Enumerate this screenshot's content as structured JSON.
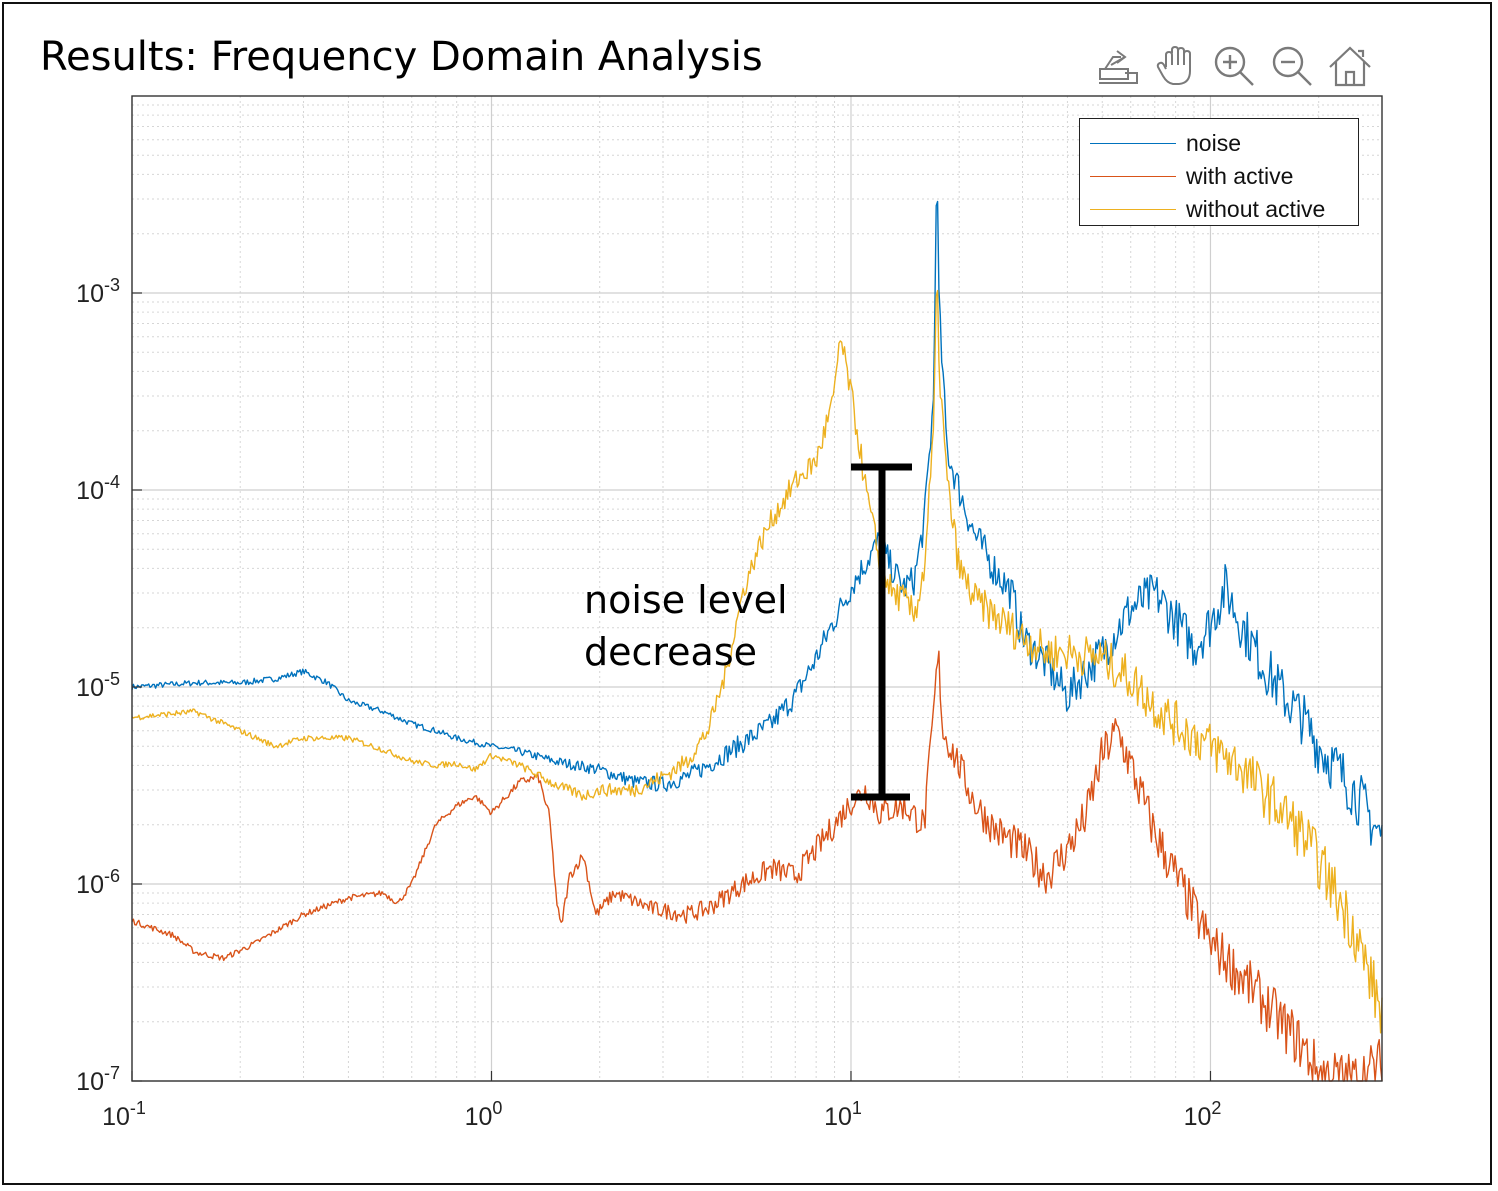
{
  "page": {
    "title": "Results: Frequency Domain Analysis"
  },
  "toolbar": [
    {
      "icon": "export-icon",
      "label": "Export"
    },
    {
      "icon": "pan-hand-icon",
      "label": "Pan"
    },
    {
      "icon": "zoom-in-icon",
      "label": "Zoom in"
    },
    {
      "icon": "zoom-out-icon",
      "label": "Zoom out"
    },
    {
      "icon": "home-icon",
      "label": "Restore view"
    }
  ],
  "annotation": {
    "line1": "noise level",
    "line2": "decrease"
  },
  "chart_data": {
    "type": "line",
    "xscale": "log",
    "yscale": "log",
    "xlim": [
      0.1,
      300
    ],
    "ylim": [
      1e-07,
      0.01
    ],
    "grid": true,
    "legend_position": "top-right",
    "xticks": [
      {
        "base": "10",
        "exp": "-1",
        "value": 0.1
      },
      {
        "base": "10",
        "exp": "0",
        "value": 1
      },
      {
        "base": "10",
        "exp": "1",
        "value": 10
      },
      {
        "base": "10",
        "exp": "2",
        "value": 100
      }
    ],
    "yticks": [
      {
        "base": "10",
        "exp": "-7",
        "value": 1e-07
      },
      {
        "base": "10",
        "exp": "-6",
        "value": 1e-06
      },
      {
        "base": "10",
        "exp": "-5",
        "value": 1e-05
      },
      {
        "base": "10",
        "exp": "-4",
        "value": 0.0001
      },
      {
        "base": "10",
        "exp": "-3",
        "value": 0.001
      }
    ],
    "series": [
      {
        "name": "noise",
        "color": "#0072BD",
        "points": [
          [
            0.1,
            1e-05
          ],
          [
            0.15,
            1.05e-05
          ],
          [
            0.2,
            1.05e-05
          ],
          [
            0.25,
            1.1e-05
          ],
          [
            0.3,
            1.2e-05
          ],
          [
            0.35,
            1.05e-05
          ],
          [
            0.4,
            8.5e-06
          ],
          [
            0.5,
            7.5e-06
          ],
          [
            0.6,
            6.5e-06
          ],
          [
            0.7,
            6e-06
          ],
          [
            0.8,
            5.5e-06
          ],
          [
            1.0,
            5e-06
          ],
          [
            1.2,
            4.7e-06
          ],
          [
            1.5,
            4.2e-06
          ],
          [
            2.0,
            3.8e-06
          ],
          [
            2.5,
            3.3e-06
          ],
          [
            3.0,
            3.2e-06
          ],
          [
            3.5,
            3.5e-06
          ],
          [
            4.0,
            4e-06
          ],
          [
            5.0,
            5.2e-06
          ],
          [
            6.0,
            6.5e-06
          ],
          [
            7.0,
            9e-06
          ],
          [
            8.0,
            1.4e-05
          ],
          [
            9.0,
            2.2e-05
          ],
          [
            10.0,
            3.2e-05
          ],
          [
            11.0,
            4.3e-05
          ],
          [
            12.0,
            5.5e-05
          ],
          [
            13.0,
            4e-05
          ],
          [
            14.0,
            3.2e-05
          ],
          [
            15.0,
            3.5e-05
          ],
          [
            16.0,
            7e-05
          ],
          [
            17.0,
            0.0003
          ],
          [
            17.3,
            0.005
          ],
          [
            17.6,
            0.0008
          ],
          [
            18.5,
            0.00016
          ],
          [
            20.0,
            0.0001
          ],
          [
            22.0,
            6e-05
          ],
          [
            25.0,
            4e-05
          ],
          [
            28.0,
            3e-05
          ],
          [
            30.0,
            1.8e-05
          ],
          [
            35.0,
            1.3e-05
          ],
          [
            40.0,
            9e-06
          ],
          [
            45.0,
            1.2e-05
          ],
          [
            50.0,
            1.5e-05
          ],
          [
            60.0,
            2.5e-05
          ],
          [
            70.0,
            3e-05
          ],
          [
            80.0,
            2.2e-05
          ],
          [
            90.0,
            1.6e-05
          ],
          [
            100.0,
            2.1e-05
          ],
          [
            110.0,
            3.2e-05
          ],
          [
            120.0,
            2.2e-05
          ],
          [
            140.0,
            1.3e-05
          ],
          [
            160.0,
            9e-06
          ],
          [
            180.0,
            7e-06
          ],
          [
            200.0,
            5e-06
          ],
          [
            250.0,
            3e-06
          ],
          [
            300.0,
            1.7e-06
          ]
        ]
      },
      {
        "name": "with active",
        "color": "#D95319",
        "points": [
          [
            0.1,
            6.5e-07
          ],
          [
            0.13,
            5.5e-07
          ],
          [
            0.15,
            4.5e-07
          ],
          [
            0.18,
            4.2e-07
          ],
          [
            0.22,
            5e-07
          ],
          [
            0.3,
            7e-07
          ],
          [
            0.4,
            8.5e-07
          ],
          [
            0.5,
            9e-07
          ],
          [
            0.55,
            8e-07
          ],
          [
            0.6,
            1e-06
          ],
          [
            0.7,
            2e-06
          ],
          [
            0.8,
            2.5e-06
          ],
          [
            0.9,
            2.8e-06
          ],
          [
            1.0,
            2.3e-06
          ],
          [
            1.2,
            3.3e-06
          ],
          [
            1.35,
            3.5e-06
          ],
          [
            1.45,
            2.2e-06
          ],
          [
            1.52,
            8e-07
          ],
          [
            1.56,
            6e-07
          ],
          [
            1.65,
            1.1e-06
          ],
          [
            1.8,
            1.4e-06
          ],
          [
            1.95,
            7e-07
          ],
          [
            2.2,
            9e-07
          ],
          [
            2.8,
            7.5e-07
          ],
          [
            3.5,
            7e-07
          ],
          [
            4.0,
            7.5e-07
          ],
          [
            5.0,
            1e-06
          ],
          [
            6.0,
            1.2e-06
          ],
          [
            7.0,
            1.1e-06
          ],
          [
            8.0,
            1.5e-06
          ],
          [
            9.0,
            2e-06
          ],
          [
            10.0,
            2.6e-06
          ],
          [
            11.0,
            3e-06
          ],
          [
            12.0,
            2.3e-06
          ],
          [
            14.0,
            2.5e-06
          ],
          [
            16.0,
            2e-06
          ],
          [
            17.2,
            1e-05
          ],
          [
            17.5,
            1.5e-05
          ],
          [
            18.0,
            6e-06
          ],
          [
            20.0,
            4e-06
          ],
          [
            22.0,
            2.6e-06
          ],
          [
            25.0,
            1.9e-06
          ],
          [
            30.0,
            1.5e-06
          ],
          [
            35.0,
            1.1e-06
          ],
          [
            40.0,
            1.5e-06
          ],
          [
            45.0,
            2.2e-06
          ],
          [
            50.0,
            4.5e-06
          ],
          [
            55.0,
            6e-06
          ],
          [
            60.0,
            4e-06
          ],
          [
            70.0,
            1.8e-06
          ],
          [
            80.0,
            1.1e-06
          ],
          [
            100.0,
            5e-07
          ],
          [
            120.0,
            3.5e-07
          ],
          [
            150.0,
            2.2e-07
          ],
          [
            180.0,
            1.5e-07
          ],
          [
            200.0,
            1.1e-07
          ],
          [
            250.0,
            1e-07
          ],
          [
            300.0,
            1.2e-07
          ]
        ]
      },
      {
        "name": "without active",
        "color": "#EDB120",
        "points": [
          [
            0.1,
            7e-06
          ],
          [
            0.15,
            7.5e-06
          ],
          [
            0.2,
            6e-06
          ],
          [
            0.25,
            5e-06
          ],
          [
            0.3,
            5.5e-06
          ],
          [
            0.4,
            5.5e-06
          ],
          [
            0.5,
            4.8e-06
          ],
          [
            0.6,
            4.2e-06
          ],
          [
            0.7,
            4e-06
          ],
          [
            0.8,
            4.1e-06
          ],
          [
            0.9,
            3.8e-06
          ],
          [
            1.0,
            4.5e-06
          ],
          [
            1.2,
            4e-06
          ],
          [
            1.5,
            3.2e-06
          ],
          [
            1.8,
            2.8e-06
          ],
          [
            2.0,
            3e-06
          ],
          [
            2.5,
            3e-06
          ],
          [
            3.0,
            3.5e-06
          ],
          [
            3.5,
            4.2e-06
          ],
          [
            4.0,
            6e-06
          ],
          [
            4.5,
            1.2e-05
          ],
          [
            5.0,
            3e-05
          ],
          [
            5.5,
            5e-05
          ],
          [
            6.0,
            7e-05
          ],
          [
            7.0,
            0.00011
          ],
          [
            8.0,
            0.00014
          ],
          [
            9.0,
            0.0003
          ],
          [
            9.3,
            0.0006
          ],
          [
            9.8,
            0.00038
          ],
          [
            10.5,
            0.00018
          ],
          [
            11.0,
            0.0001
          ],
          [
            11.5,
            6.5e-05
          ],
          [
            12.0,
            4.5e-05
          ],
          [
            13.0,
            3e-05
          ],
          [
            14.0,
            2.8e-05
          ],
          [
            15.0,
            2.3e-05
          ],
          [
            16.0,
            4e-05
          ],
          [
            17.0,
            0.0002
          ],
          [
            17.3,
            0.0012
          ],
          [
            17.7,
            0.00035
          ],
          [
            18.5,
            0.00011
          ],
          [
            20.0,
            4e-05
          ],
          [
            22.0,
            2.8e-05
          ],
          [
            25.0,
            2.3e-05
          ],
          [
            30.0,
            1.8e-05
          ],
          [
            35.0,
            1.5e-05
          ],
          [
            40.0,
            1.5e-05
          ],
          [
            50.0,
            1.4e-05
          ],
          [
            60.0,
            1.1e-05
          ],
          [
            70.0,
            8e-06
          ],
          [
            80.0,
            6.5e-06
          ],
          [
            100.0,
            5e-06
          ],
          [
            120.0,
            4e-06
          ],
          [
            150.0,
            2.6e-06
          ],
          [
            180.0,
            1.8e-06
          ],
          [
            200.0,
            1.3e-06
          ],
          [
            250.0,
            6e-07
          ],
          [
            300.0,
            2.2e-07
          ]
        ]
      }
    ]
  }
}
